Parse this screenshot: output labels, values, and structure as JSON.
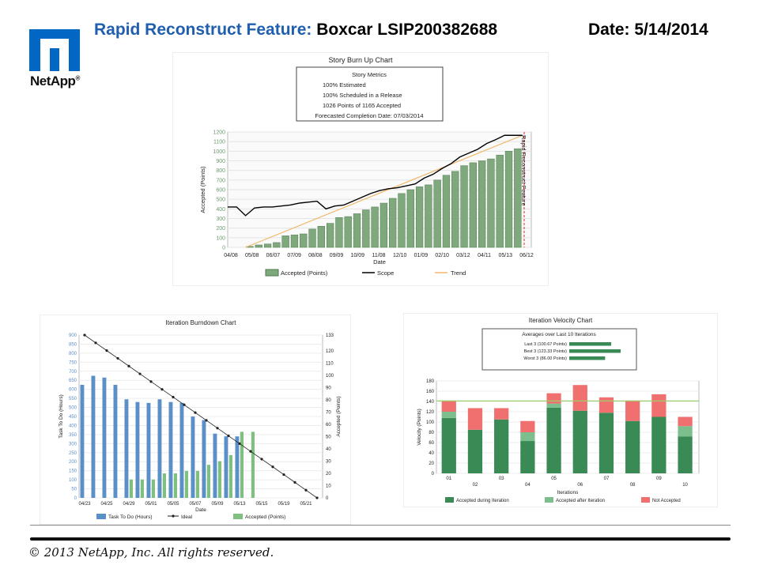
{
  "header": {
    "title_blue": "Rapid Reconstruct Feature:",
    "title_black": "Boxcar LSIP200382688",
    "date": "Date: 5/14/2014"
  },
  "logo": {
    "text": "NetApp",
    "mark": "®",
    "icon": "netapp-n-icon",
    "color": "#0067c5"
  },
  "footer": {
    "copyright": "© 2013 NetApp, Inc. All rights reserved."
  },
  "chart_data": [
    {
      "id": "burnup",
      "type": "bar",
      "title": "Story Burn Up Chart",
      "metrics_title": "Story Metrics",
      "metrics": [
        "100% Estimated",
        "100% Scheduled in a Release",
        "1026 Points of 1165 Accepted",
        "Forecasted Completion Date: 07/03/2014"
      ],
      "xlabel": "Date",
      "ylabel": "Accepted (Points)",
      "ylim": [
        0,
        1200
      ],
      "yticks": [
        0,
        100,
        200,
        300,
        400,
        500,
        600,
        700,
        800,
        900,
        1000,
        1100,
        1200
      ],
      "xticks": [
        "04/08",
        "05/08",
        "06/07",
        "07/09",
        "08/08",
        "09/09",
        "10/09",
        "11/08",
        "12/10",
        "01/09",
        "02/10",
        "03/12",
        "04/11",
        "05/13",
        "06/12"
      ],
      "marker_label": "Rapid Reconstruct Feature",
      "accepted": [
        10,
        25,
        35,
        50,
        120,
        130,
        140,
        190,
        220,
        250,
        310,
        320,
        350,
        390,
        420,
        460,
        510,
        560,
        600,
        630,
        650,
        700,
        750,
        790,
        850,
        880,
        900,
        920,
        960,
        1000,
        1026
      ],
      "scope": [
        [
          0,
          420
        ],
        [
          1,
          420
        ],
        [
          2,
          330
        ],
        [
          3,
          410
        ],
        [
          4,
          420
        ],
        [
          5,
          420
        ],
        [
          6,
          430
        ],
        [
          7,
          440
        ],
        [
          8,
          460
        ],
        [
          9,
          470
        ],
        [
          10,
          480
        ],
        [
          11,
          400
        ],
        [
          12,
          430
        ],
        [
          13,
          440
        ],
        [
          14,
          480
        ],
        [
          15,
          520
        ],
        [
          16,
          560
        ],
        [
          17,
          590
        ],
        [
          18,
          610
        ],
        [
          19,
          620
        ],
        [
          20,
          640
        ],
        [
          21,
          660
        ],
        [
          22,
          720
        ],
        [
          23,
          760
        ],
        [
          24,
          820
        ],
        [
          25,
          870
        ],
        [
          26,
          940
        ],
        [
          27,
          980
        ],
        [
          28,
          1020
        ],
        [
          29,
          1080
        ],
        [
          30,
          1120
        ],
        [
          31,
          1165
        ],
        [
          33,
          1165
        ]
      ],
      "trend": [
        [
          2,
          0
        ],
        [
          33,
          1165
        ]
      ],
      "legend": [
        "Accepted (Points)",
        "Scope",
        "Trend"
      ],
      "colors": {
        "accepted": "#7fa97c",
        "scope": "#000000",
        "trend": "#f0b86a",
        "marker": "#d03030"
      }
    },
    {
      "id": "burndown",
      "type": "bar",
      "title": "Iteration Burndown Chart",
      "xlabel": "Date",
      "ylabel": "Task To Do (Hours)",
      "y2label": "Accepted (Points)",
      "ylim": [
        0,
        900
      ],
      "yticks": [
        0,
        50,
        100,
        150,
        200,
        250,
        300,
        350,
        400,
        450,
        500,
        550,
        600,
        650,
        700,
        750,
        800,
        850,
        900
      ],
      "y2lim": [
        0,
        133
      ],
      "y2ticks": [
        0,
        10,
        20,
        30,
        40,
        50,
        60,
        70,
        80,
        90,
        100,
        110,
        120,
        133
      ],
      "xticks": [
        "04/23",
        "04/25",
        "04/29",
        "05/01",
        "05/05",
        "05/07",
        "05/09",
        "05/13",
        "05/15",
        "05/19",
        "05/21"
      ],
      "todo": [
        625,
        675,
        665,
        625,
        545,
        530,
        525,
        545,
        530,
        525,
        450,
        430,
        355,
        340,
        340,
        0,
        0,
        0,
        0,
        0,
        0,
        0
      ],
      "accepted_points": [
        0,
        0,
        0,
        0,
        15,
        15,
        15,
        20,
        20,
        22,
        22,
        27,
        30,
        35,
        54,
        54,
        0,
        0,
        0,
        0,
        0,
        0
      ],
      "ideal_start": 900,
      "legend": [
        "Task To Do (Hours)",
        "Ideal",
        "Accepted (Points)"
      ],
      "colors": {
        "todo": "#5b8fc7",
        "accepted": "#7fbf7f",
        "ideal": "#222222"
      }
    },
    {
      "id": "velocity",
      "type": "bar",
      "title": "Iteration Velocity Chart",
      "averages_title": "Averages over Last 10 Iterations",
      "averages": [
        {
          "label": "Last 3 (100.67 Points)",
          "value": 100.67
        },
        {
          "label": "Best 3 (123.33 Points)",
          "value": 123.33
        },
        {
          "label": "Worst 3 (86.00 Points)",
          "value": 86.0
        }
      ],
      "xlabel": "Iterations",
      "ylabel": "Velocity (Points)",
      "ylim": [
        0,
        180
      ],
      "yticks": [
        0,
        20,
        40,
        60,
        80,
        100,
        120,
        140,
        160,
        180
      ],
      "categories": [
        "01",
        "02",
        "03",
        "04",
        "05",
        "06",
        "07",
        "08",
        "09",
        "10"
      ],
      "series": [
        {
          "name": "Accepted during Iteration",
          "values": [
            108,
            85,
            105,
            63,
            128,
            122,
            118,
            102,
            110,
            72
          ]
        },
        {
          "name": "Accepted after Iteration",
          "values": [
            12,
            0,
            0,
            17,
            8,
            0,
            0,
            0,
            0,
            20
          ]
        },
        {
          "name": "Not Accepted",
          "values": [
            22,
            42,
            22,
            22,
            20,
            50,
            30,
            40,
            44,
            18
          ]
        }
      ],
      "average_line": 141,
      "colors": {
        "during": "#3a8a55",
        "after": "#7dbf8c",
        "not": "#f07070",
        "avg": "#9ccf6a"
      }
    }
  ]
}
